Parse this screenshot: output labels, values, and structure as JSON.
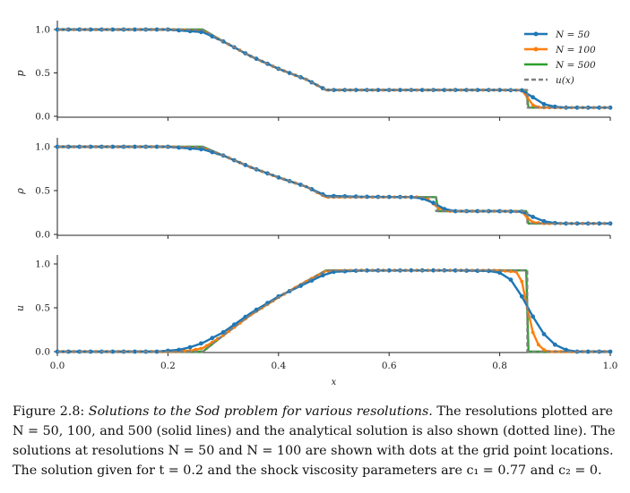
{
  "figure": {
    "legend": [
      "N = 50",
      "N = 100",
      "N = 500",
      "u(x)"
    ],
    "colors": {
      "n50": "#1f77b4",
      "n100": "#ff7f0e",
      "n500": "#2ca02c",
      "analytic": "#808080"
    }
  },
  "chart_data": [
    {
      "type": "line",
      "ylabel": "p",
      "xlabel": "",
      "xlim": [
        0.0,
        1.0
      ],
      "ylim": [
        0.0,
        1.0
      ],
      "yticks": [
        "0.0",
        "0.5",
        "1.0"
      ],
      "legend_position": "top-right",
      "series": [
        {
          "name": "N = 500",
          "x": [
            0,
            0.263,
            0.3,
            0.35,
            0.4,
            0.45,
            0.486,
            0.55,
            0.6,
            0.7,
            0.8,
            0.848,
            0.852,
            1.0
          ],
          "y": [
            1.0,
            1.0,
            0.863,
            0.692,
            0.547,
            0.426,
            0.303,
            0.303,
            0.303,
            0.303,
            0.303,
            0.303,
            0.1,
            0.1
          ]
        },
        {
          "name": "N = 100",
          "x": [
            0,
            0.2,
            0.263,
            0.3,
            0.35,
            0.4,
            0.45,
            0.486,
            0.55,
            0.7,
            0.8,
            0.84,
            0.85,
            0.86,
            0.87,
            0.88,
            1.0
          ],
          "y": [
            1.0,
            1.0,
            0.98,
            0.863,
            0.692,
            0.547,
            0.426,
            0.303,
            0.303,
            0.303,
            0.303,
            0.3,
            0.22,
            0.13,
            0.105,
            0.1,
            0.1
          ]
        },
        {
          "name": "N = 50",
          "x": [
            0,
            0.2,
            0.263,
            0.3,
            0.35,
            0.4,
            0.45,
            0.486,
            0.55,
            0.7,
            0.8,
            0.84,
            0.86,
            0.88,
            0.9,
            0.92,
            0.94,
            1.0
          ],
          "y": [
            1.0,
            1.0,
            0.97,
            0.863,
            0.692,
            0.547,
            0.426,
            0.303,
            0.303,
            0.303,
            0.303,
            0.3,
            0.22,
            0.14,
            0.11,
            0.1,
            0.1,
            0.1
          ]
        },
        {
          "name": "u(x)",
          "x": [
            0,
            0.263,
            0.3,
            0.35,
            0.4,
            0.45,
            0.486,
            0.55,
            0.7,
            0.8,
            0.85,
            0.85,
            1.0
          ],
          "y": [
            1.0,
            1.0,
            0.863,
            0.692,
            0.547,
            0.426,
            0.303,
            0.303,
            0.303,
            0.303,
            0.303,
            0.1,
            0.1
          ]
        }
      ]
    },
    {
      "type": "line",
      "ylabel": "ρ",
      "xlabel": "",
      "xlim": [
        0.0,
        1.0
      ],
      "ylim": [
        0.0,
        1.0
      ],
      "yticks": [
        "0.0",
        "0.5",
        "1.0"
      ],
      "series": [
        {
          "name": "N = 500",
          "x": [
            0,
            0.263,
            0.3,
            0.35,
            0.4,
            0.45,
            0.486,
            0.55,
            0.6,
            0.68,
            0.685,
            0.689,
            0.75,
            0.8,
            0.848,
            0.852,
            1.0
          ],
          "y": [
            1.0,
            1.0,
            0.9,
            0.765,
            0.65,
            0.545,
            0.426,
            0.426,
            0.426,
            0.426,
            0.426,
            0.265,
            0.265,
            0.265,
            0.265,
            0.125,
            0.125
          ]
        },
        {
          "name": "N = 100",
          "x": [
            0,
            0.2,
            0.263,
            0.3,
            0.35,
            0.4,
            0.45,
            0.486,
            0.55,
            0.65,
            0.67,
            0.69,
            0.71,
            0.8,
            0.84,
            0.85,
            0.86,
            0.88,
            1.0
          ],
          "y": [
            1.0,
            1.0,
            0.98,
            0.9,
            0.765,
            0.65,
            0.545,
            0.426,
            0.426,
            0.426,
            0.4,
            0.3,
            0.265,
            0.265,
            0.26,
            0.19,
            0.14,
            0.125,
            0.125
          ]
        },
        {
          "name": "N = 50",
          "x": [
            0,
            0.2,
            0.263,
            0.3,
            0.35,
            0.4,
            0.45,
            0.486,
            0.55,
            0.64,
            0.66,
            0.68,
            0.7,
            0.72,
            0.8,
            0.84,
            0.86,
            0.88,
            0.9,
            0.92,
            1.0
          ],
          "y": [
            1.0,
            1.0,
            0.97,
            0.9,
            0.765,
            0.65,
            0.545,
            0.44,
            0.43,
            0.426,
            0.41,
            0.36,
            0.29,
            0.265,
            0.265,
            0.26,
            0.2,
            0.15,
            0.13,
            0.125,
            0.125
          ]
        },
        {
          "name": "u(x)",
          "x": [
            0,
            0.263,
            0.3,
            0.35,
            0.4,
            0.45,
            0.486,
            0.55,
            0.685,
            0.685,
            0.8,
            0.85,
            0.85,
            1.0
          ],
          "y": [
            1.0,
            1.0,
            0.9,
            0.765,
            0.65,
            0.545,
            0.426,
            0.426,
            0.426,
            0.265,
            0.265,
            0.265,
            0.125,
            0.125
          ]
        }
      ]
    },
    {
      "type": "line",
      "ylabel": "u",
      "xlabel": "x",
      "xlim": [
        0.0,
        1.0
      ],
      "ylim": [
        0.0,
        1.0
      ],
      "xticks": [
        "0.0",
        "0.2",
        "0.4",
        "0.6",
        "0.8",
        "1.0"
      ],
      "yticks": [
        "0.0",
        "0.5",
        "1.0"
      ],
      "series": [
        {
          "name": "N = 500",
          "x": [
            0,
            0.263,
            0.3,
            0.35,
            0.4,
            0.45,
            0.486,
            0.55,
            0.7,
            0.8,
            0.848,
            0.852,
            1.0
          ],
          "y": [
            0.0,
            0.0,
            0.185,
            0.42,
            0.62,
            0.8,
            0.927,
            0.927,
            0.927,
            0.927,
            0.927,
            0.0,
            0.0
          ]
        },
        {
          "name": "N = 100",
          "x": [
            0,
            0.2,
            0.24,
            0.263,
            0.3,
            0.35,
            0.4,
            0.45,
            0.486,
            0.55,
            0.7,
            0.8,
            0.83,
            0.84,
            0.85,
            0.86,
            0.87,
            0.88,
            0.89,
            1.0
          ],
          "y": [
            0.0,
            0.0,
            0.01,
            0.04,
            0.185,
            0.42,
            0.62,
            0.8,
            0.92,
            0.927,
            0.927,
            0.925,
            0.91,
            0.8,
            0.5,
            0.22,
            0.08,
            0.02,
            0.0,
            0.0
          ]
        },
        {
          "name": "N = 50",
          "x": [
            0,
            0.18,
            0.22,
            0.24,
            0.263,
            0.3,
            0.35,
            0.4,
            0.45,
            0.48,
            0.5,
            0.55,
            0.7,
            0.78,
            0.8,
            0.82,
            0.84,
            0.86,
            0.88,
            0.9,
            0.92,
            0.94,
            1.0
          ],
          "y": [
            0.0,
            0.0,
            0.02,
            0.05,
            0.1,
            0.22,
            0.44,
            0.63,
            0.78,
            0.87,
            0.91,
            0.925,
            0.927,
            0.92,
            0.9,
            0.82,
            0.63,
            0.4,
            0.2,
            0.08,
            0.02,
            0.0,
            0.0
          ]
        },
        {
          "name": "u(x)",
          "x": [
            0,
            0.263,
            0.3,
            0.35,
            0.4,
            0.45,
            0.486,
            0.55,
            0.7,
            0.8,
            0.85,
            0.85,
            1.0
          ],
          "y": [
            0.0,
            0.0,
            0.185,
            0.42,
            0.62,
            0.8,
            0.927,
            0.927,
            0.927,
            0.927,
            0.927,
            0.0,
            0.0
          ]
        }
      ]
    }
  ],
  "caption": {
    "label": "Figure 2.8:",
    "title": "Solutions to the Sod problem for various resolutions.",
    "line1_rest": "The resolutions plotted are",
    "line2": "N = 50,  100, and 500 (solid lines) and the analytical solution is also shown (dotted line). The",
    "line3": "solutions at resolutions N = 50 and N = 100 are shown with dots at the grid point locations.",
    "line4": "The solution given for t = 0.2 and the shock viscosity parameters are c₁ = 0.77 and c₂ = 0."
  }
}
